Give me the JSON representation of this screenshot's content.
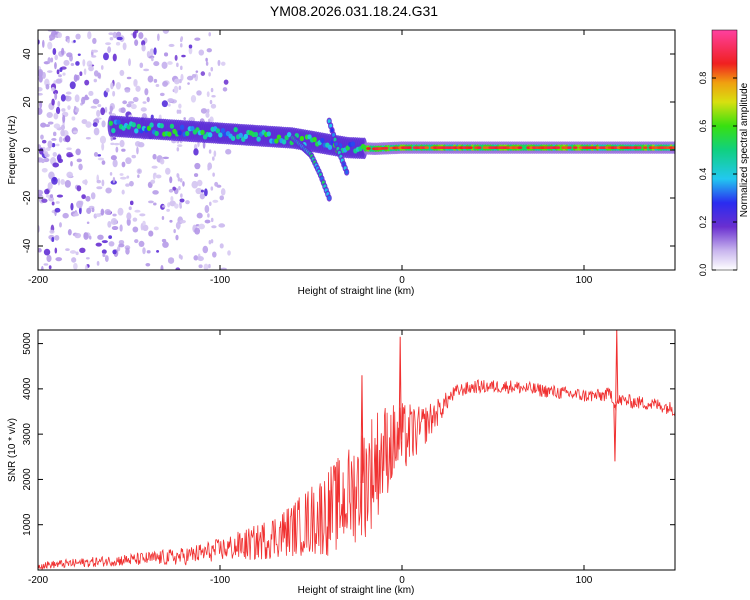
{
  "figure_title": "YM08.2026.031.18.24.G31",
  "colors": {
    "snr_line": "#f03030",
    "spectrogram_peak": "#ff2020",
    "axis": "#000000",
    "background": "#ffffff"
  },
  "chart_data": [
    {
      "type": "heatmap",
      "title": "YM08.2026.031.18.24.G31",
      "xlabel": "Height of straight line (km)",
      "ylabel": "Frequency (Hz)",
      "xlim": [
        -200,
        150
      ],
      "ylim": [
        -50,
        50
      ],
      "x_ticks": [
        -200,
        -100,
        0,
        100
      ],
      "y_ticks": [
        -40,
        -20,
        0,
        20,
        40
      ],
      "colorbar": {
        "label": "Normalized spectral amplitude",
        "range": [
          0,
          1
        ],
        "ticks": [
          0.0,
          0.2,
          0.4,
          0.6,
          0.8
        ],
        "tick_labels": [
          "0.0",
          "0.2",
          "0.4",
          "0.6",
          "0.8"
        ],
        "colormap": "white-purple-blue-cyan-green-yellow-red-magenta"
      },
      "description_series": [
        {
          "name": "noise_region",
          "x_range": [
            -200,
            -95
          ],
          "y_range": [
            -50,
            50
          ],
          "amplitude": 0.1
        },
        {
          "name": "main_trace",
          "points": [
            [
              -160,
              10
            ],
            [
              -140,
              9
            ],
            [
              -120,
              8
            ],
            [
              -100,
              7
            ],
            [
              -80,
              6
            ],
            [
              -60,
              5
            ],
            [
              -45,
              3
            ],
            [
              -30,
              1
            ],
            [
              -15,
              0.5
            ],
            [
              0,
              1
            ],
            [
              50,
              1
            ],
            [
              100,
              1
            ],
            [
              150,
              1
            ]
          ],
          "peak_amplitude": 0.95
        },
        {
          "name": "descending_branch_1",
          "points": [
            [
              -60,
              5
            ],
            [
              -50,
              -2
            ],
            [
              -45,
              -10
            ],
            [
              -40,
              -20
            ]
          ],
          "amplitude": 0.45
        },
        {
          "name": "descending_branch_2",
          "points": [
            [
              -40,
              12
            ],
            [
              -35,
              0
            ],
            [
              -30,
              -10
            ]
          ],
          "amplitude": 0.4
        }
      ]
    },
    {
      "type": "line",
      "xlabel": "Height of straight line (km)",
      "ylabel": "SNR (10 * v/v)",
      "xlim": [
        -200,
        150
      ],
      "ylim": [
        0,
        5300
      ],
      "x_ticks": [
        -200,
        -100,
        0,
        100
      ],
      "y_ticks": [
        1000,
        2000,
        3000,
        4000,
        5000
      ],
      "series": [
        {
          "name": "SNR",
          "x": [
            -200,
            -180,
            -160,
            -140,
            -120,
            -100,
            -80,
            -60,
            -50,
            -40,
            -30,
            -25,
            -20,
            -15,
            -10,
            -5,
            0,
            5,
            10,
            15,
            20,
            25,
            30,
            40,
            50,
            60,
            70,
            80,
            90,
            100,
            110,
            115,
            117,
            120,
            130,
            140,
            150
          ],
          "values": [
            100,
            150,
            200,
            250,
            300,
            450,
            600,
            900,
            1100,
            1300,
            1600,
            1800,
            2000,
            2300,
            2600,
            2800,
            2900,
            3000,
            3100,
            3300,
            3500,
            3750,
            3950,
            4050,
            4050,
            4050,
            4000,
            3950,
            3900,
            3850,
            3850,
            3900,
            3650,
            3750,
            3700,
            3650,
            3550
          ],
          "noise_amplitude": [
            80,
            100,
            120,
            150,
            200,
            250,
            400,
            600,
            800,
            1000,
            1100,
            1200,
            1300,
            1300,
            1100,
            900,
            800,
            700,
            500,
            400,
            300,
            200,
            150,
            150,
            150,
            150,
            150,
            150,
            150,
            150,
            150,
            150,
            150,
            150,
            150,
            150,
            150
          ]
        }
      ],
      "spikes": [
        {
          "x": -22,
          "y": 4300
        },
        {
          "x": -1,
          "y": 5150
        },
        {
          "x": 118,
          "y": 5300
        },
        {
          "x": 117,
          "y": 2400
        }
      ]
    }
  ]
}
